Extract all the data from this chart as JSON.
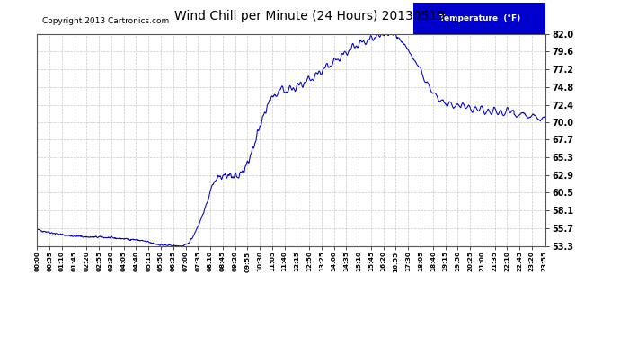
{
  "title": "Wind Chill per Minute (24 Hours) 20130519",
  "copyright": "Copyright 2013 Cartronics.com",
  "legend_label": "Temperature  (°F)",
  "line_color": "#0000CC",
  "background_color": "#ffffff",
  "plot_bg_color": "#ffffff",
  "grid_color": "#bbbbbb",
  "yticks": [
    53.3,
    55.7,
    58.1,
    60.5,
    62.9,
    65.3,
    67.7,
    70.0,
    72.4,
    74.8,
    77.2,
    79.6,
    82.0
  ],
  "ylim": [
    53.3,
    82.0
  ],
  "tick_interval_min": 35,
  "total_minutes": 1440
}
